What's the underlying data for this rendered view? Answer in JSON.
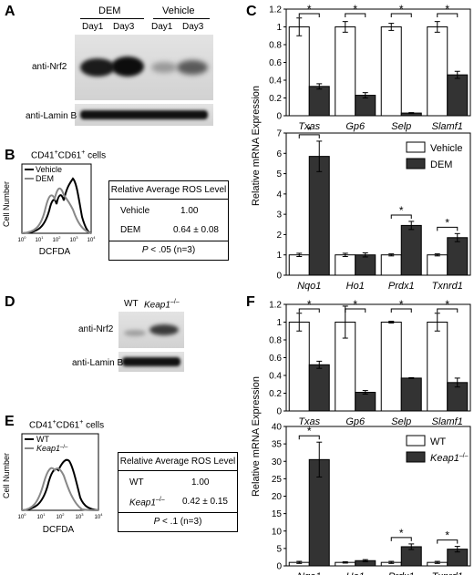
{
  "panels": {
    "A": {
      "letter": "A",
      "group1": "DEM",
      "group2": "Vehicle",
      "lanes": [
        "Day1",
        "Day3",
        "Day1",
        "Day3"
      ],
      "row1": "anti-Nrf2",
      "row2": "anti-Lamin B"
    },
    "B": {
      "letter": "B",
      "title": "CD41",
      "title_sup1": "+",
      "title_mid": "CD61",
      "title_sup2": "+",
      "title_tail": " cells",
      "legend": [
        "Vehicle",
        "DEM"
      ],
      "ylabel": "Cell Number",
      "xlabel": "DCFDA",
      "ticks": [
        "10",
        "10",
        "10",
        "10",
        "10"
      ],
      "tick_exp": [
        "0",
        "1",
        "2",
        "3",
        "4"
      ],
      "table_title": "Relative Average ROS Level",
      "rows": [
        {
          "label": "Vehicle",
          "value": "1.00"
        },
        {
          "label": "DEM",
          "value": "0.64 ± 0.08"
        }
      ],
      "pval_p": "P",
      "pval": " < .05 (n=3)"
    },
    "D": {
      "letter": "D",
      "lanes": [
        "WT",
        "Keap1"
      ],
      "lane_sup": "–/–",
      "row1": "anti-Nrf2",
      "row2": "anti-Lamin B"
    },
    "E": {
      "letter": "E",
      "title": "CD41",
      "title_sup1": "+",
      "title_mid": "CD61",
      "title_sup2": "+",
      "title_tail": " cells",
      "legend": [
        "WT",
        "Keap1"
      ],
      "legend_sup": "–/–",
      "ylabel": "Cell Number",
      "xlabel": "DCFDA",
      "ticks": [
        "10",
        "10",
        "10",
        "10",
        "10"
      ],
      "tick_exp": [
        "0",
        "1",
        "2",
        "3",
        "4"
      ],
      "table_title": "Relative Average ROS Level",
      "rows": [
        {
          "label": "WT",
          "value": "1.00"
        },
        {
          "label": "Keap1",
          "value": "0.42 ± 0.15"
        }
      ],
      "row2_sup": "–/–",
      "pval_p": "P",
      "pval": " < .1 (n=3)"
    },
    "C": {
      "letter": "C",
      "ylabel": "Relative mRNA Expression"
    },
    "F": {
      "letter": "F",
      "ylabel": "Relative mRNA Expression"
    }
  },
  "chart_data": [
    {
      "id": "C-top",
      "type": "bar",
      "categories": [
        "Txas",
        "Gp6",
        "Selp",
        "Slamf1"
      ],
      "series": [
        {
          "name": "Vehicle",
          "values": [
            1.0,
            1.0,
            1.0,
            1.0
          ],
          "errors": [
            0.1,
            0.06,
            0.04,
            0.06
          ]
        },
        {
          "name": "DEM",
          "values": [
            0.33,
            0.23,
            0.03,
            0.46
          ],
          "errors": [
            0.03,
            0.03,
            0.005,
            0.04
          ]
        }
      ],
      "ylim": [
        0,
        1.2
      ],
      "yticks": [
        "0",
        "0.2",
        "0.4",
        "0.6",
        "0.8",
        "1",
        "1.2"
      ],
      "significance": [
        "*",
        "*",
        "*",
        "*"
      ],
      "legend": "none"
    },
    {
      "id": "C-bottom",
      "type": "bar",
      "categories": [
        "Nqo1",
        "Ho1",
        "Prdx1",
        "Txnrd1"
      ],
      "series": [
        {
          "name": "Vehicle",
          "values": [
            1.0,
            1.0,
            1.0,
            1.0
          ],
          "errors": [
            0.08,
            0.08,
            0.05,
            0.05
          ]
        },
        {
          "name": "DEM",
          "values": [
            5.85,
            1.0,
            2.45,
            1.85
          ],
          "errors": [
            0.75,
            0.1,
            0.2,
            0.2
          ]
        }
      ],
      "ylim": [
        0,
        7
      ],
      "yticks": [
        "0",
        "1",
        "2",
        "3",
        "4",
        "5",
        "6",
        "7"
      ],
      "significance": [
        "*",
        "",
        "*",
        "*"
      ],
      "legend": "top-right"
    },
    {
      "id": "F-top",
      "type": "bar",
      "categories": [
        "Txas",
        "Gp6",
        "Selp",
        "Slamf1"
      ],
      "series": [
        {
          "name": "WT",
          "values": [
            1.0,
            1.0,
            1.0,
            1.0
          ],
          "errors": [
            0.1,
            0.18,
            0.01,
            0.1
          ]
        },
        {
          "name": "Keap1",
          "values": [
            0.52,
            0.21,
            0.37,
            0.32
          ],
          "errors": [
            0.04,
            0.02,
            0.005,
            0.05
          ]
        }
      ],
      "ylim": [
        0,
        1.2
      ],
      "yticks": [
        "0",
        "0.2",
        "0.4",
        "0.6",
        "0.8",
        "1",
        "1.2"
      ],
      "significance": [
        "*",
        "*",
        "*",
        "*"
      ],
      "legend": "none"
    },
    {
      "id": "F-bottom",
      "type": "bar",
      "categories": [
        "Nqo1",
        "Ho1",
        "Prdx1",
        "Txnrd1"
      ],
      "series": [
        {
          "name": "WT",
          "values": [
            1.0,
            1.0,
            1.0,
            1.0
          ],
          "errors": [
            0.3,
            0.2,
            0.3,
            0.3
          ]
        },
        {
          "name": "Keap1",
          "values": [
            30.5,
            1.5,
            5.5,
            4.8
          ],
          "errors": [
            5.0,
            0.3,
            0.8,
            0.8
          ]
        }
      ],
      "ylim": [
        0,
        40
      ],
      "yticks": [
        "0",
        "5",
        "10",
        "15",
        "20",
        "25",
        "30",
        "35",
        "40"
      ],
      "significance": [
        "*",
        "",
        "*",
        "*"
      ],
      "legend": "top-right",
      "legend_sup": "–/–"
    }
  ]
}
